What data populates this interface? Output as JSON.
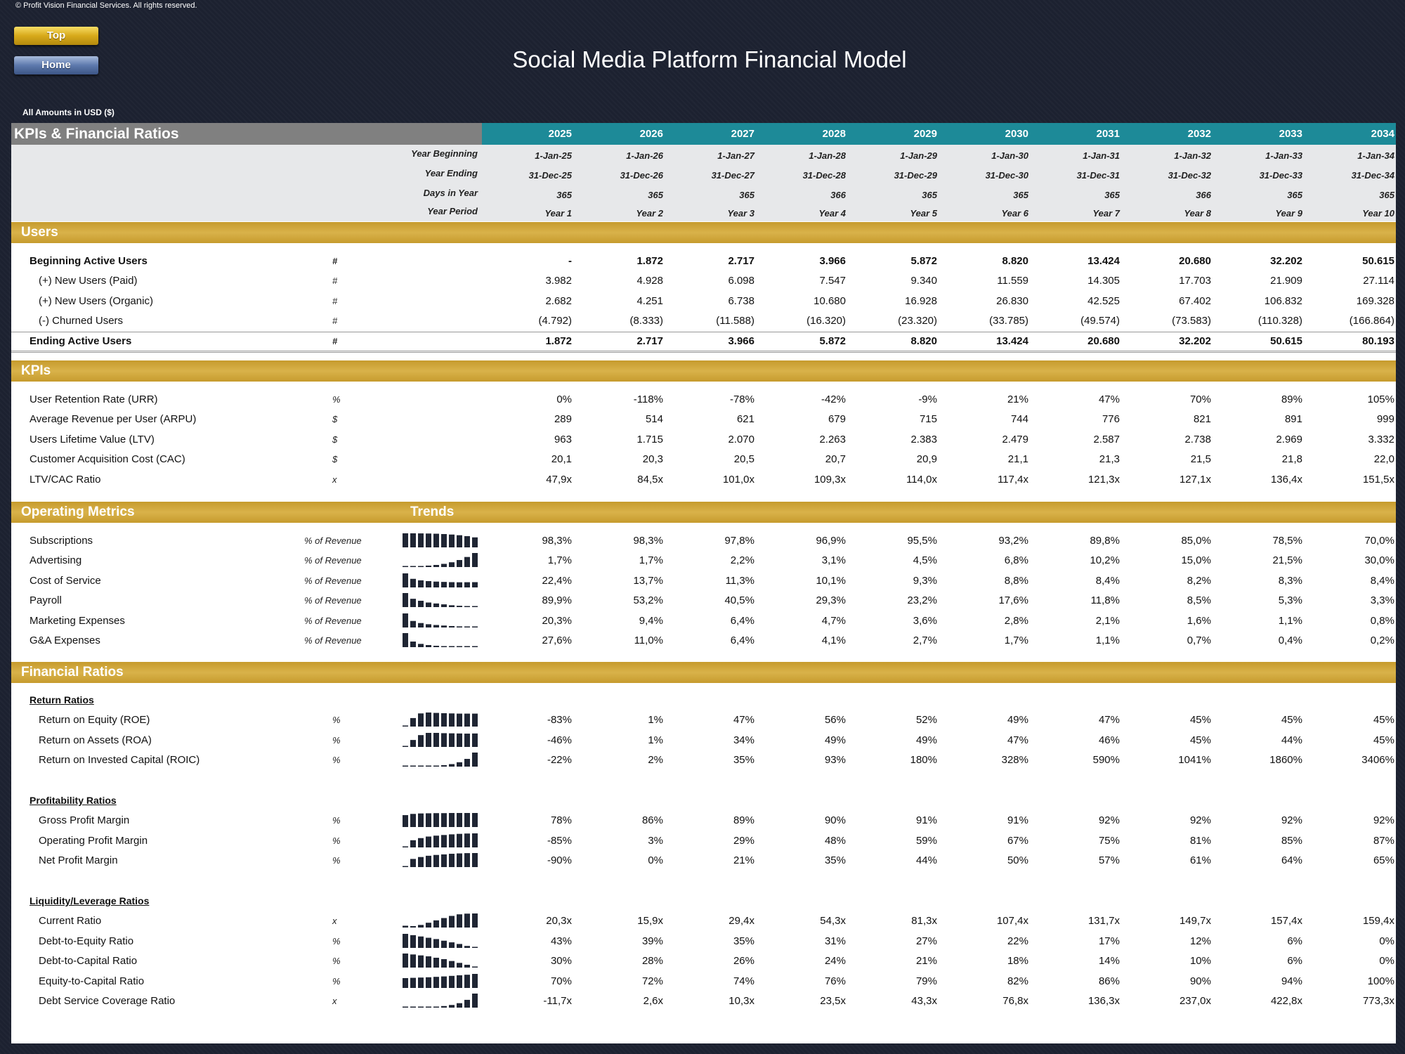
{
  "copyright": "© Profit Vision Financial Services. All rights reserved.",
  "nav": {
    "top_label": "Top",
    "home_label": "Home"
  },
  "title": "Social Media Platform Financial Model",
  "amounts_note": "All Amounts in  USD ($)",
  "header": {
    "label": "KPIs & Financial Ratios",
    "years": [
      "2025",
      "2026",
      "2027",
      "2028",
      "2029",
      "2030",
      "2031",
      "2032",
      "2033",
      "2034"
    ]
  },
  "periods": [
    {
      "label": "Year Beginning",
      "values": [
        "1-Jan-25",
        "1-Jan-26",
        "1-Jan-27",
        "1-Jan-28",
        "1-Jan-29",
        "1-Jan-30",
        "1-Jan-31",
        "1-Jan-32",
        "1-Jan-33",
        "1-Jan-34"
      ]
    },
    {
      "label": "Year Ending",
      "values": [
        "31-Dec-25",
        "31-Dec-26",
        "31-Dec-27",
        "31-Dec-28",
        "31-Dec-29",
        "31-Dec-30",
        "31-Dec-31",
        "31-Dec-32",
        "31-Dec-33",
        "31-Dec-34"
      ]
    },
    {
      "label": "Days in Year",
      "values": [
        "365",
        "365",
        "365",
        "366",
        "365",
        "365",
        "365",
        "366",
        "365",
        "365"
      ]
    },
    {
      "label": "Year Period",
      "values": [
        "Year 1",
        "Year 2",
        "Year 3",
        "Year 4",
        "Year 5",
        "Year 6",
        "Year 7",
        "Year 8",
        "Year 9",
        "Year 10"
      ]
    }
  ],
  "sections": [
    {
      "title": "Users",
      "trends_label": "",
      "subgroups": [
        {
          "title": "",
          "rows": [
            {
              "label": "Beginning Active Users",
              "unit": "#",
              "bold": true,
              "indent": false,
              "values": [
                "-",
                "1.872",
                "2.717",
                "3.966",
                "5.872",
                "8.820",
                "13.424",
                "20.680",
                "32.202",
                "50.615"
              ]
            },
            {
              "label": "(+) New Users (Paid)",
              "unit": "#",
              "indent": true,
              "values": [
                "3.982",
                "4.928",
                "6.098",
                "7.547",
                "9.340",
                "11.559",
                "14.305",
                "17.703",
                "21.909",
                "27.114"
              ]
            },
            {
              "label": "(+) New Users (Organic)",
              "unit": "#",
              "indent": true,
              "values": [
                "2.682",
                "4.251",
                "6.738",
                "10.680",
                "16.928",
                "26.830",
                "42.525",
                "67.402",
                "106.832",
                "169.328"
              ]
            },
            {
              "label": "(-) Churned Users",
              "unit": "#",
              "indent": true,
              "values": [
                "(4.792)",
                "(8.333)",
                "(11.588)",
                "(16.320)",
                "(23.320)",
                "(33.785)",
                "(49.574)",
                "(73.583)",
                "(110.328)",
                "(166.864)"
              ]
            },
            {
              "label": "Ending Active Users",
              "unit": "#",
              "bold": true,
              "indent": false,
              "total": true,
              "values": [
                "1.872",
                "2.717",
                "3.966",
                "5.872",
                "8.820",
                "13.424",
                "20.680",
                "32.202",
                "50.615",
                "80.193"
              ]
            }
          ]
        }
      ]
    },
    {
      "title": "KPIs",
      "trends_label": "",
      "subgroups": [
        {
          "title": "",
          "rows": [
            {
              "label": "User Retention Rate (URR)",
              "unit": "%",
              "values": [
                "0%",
                "-118%",
                "-78%",
                "-42%",
                "-9%",
                "21%",
                "47%",
                "70%",
                "89%",
                "105%"
              ]
            },
            {
              "label": "Average Revenue per User (ARPU)",
              "unit": "$",
              "values": [
                "289",
                "514",
                "621",
                "679",
                "715",
                "744",
                "776",
                "821",
                "891",
                "999"
              ]
            },
            {
              "label": "Users Lifetime Value (LTV)",
              "unit": "$",
              "values": [
                "963",
                "1.715",
                "2.070",
                "2.263",
                "2.383",
                "2.479",
                "2.587",
                "2.738",
                "2.969",
                "3.332"
              ]
            },
            {
              "label": "Customer Acquisition Cost (CAC)",
              "unit": "$",
              "values": [
                "20,1",
                "20,3",
                "20,5",
                "20,7",
                "20,9",
                "21,1",
                "21,3",
                "21,5",
                "21,8",
                "22,0"
              ]
            },
            {
              "label": "LTV/CAC Ratio",
              "unit": "x",
              "values": [
                "47,9x",
                "84,5x",
                "101,0x",
                "109,3x",
                "114,0x",
                "117,4x",
                "121,3x",
                "127,1x",
                "136,4x",
                "151,5x"
              ]
            }
          ]
        }
      ]
    },
    {
      "title": "Operating Metrics",
      "trends_label": "Trends",
      "subgroups": [
        {
          "title": "",
          "rows": [
            {
              "label": "Subscriptions",
              "unit": "% of Revenue",
              "spark": [
                98.3,
                98.3,
                97.8,
                96.9,
                95.5,
                93.2,
                89.8,
                85.0,
                78.5,
                70.0
              ],
              "values": [
                "98,3%",
                "98,3%",
                "97,8%",
                "96,9%",
                "95,5%",
                "93,2%",
                "89,8%",
                "85,0%",
                "78,5%",
                "70,0%"
              ]
            },
            {
              "label": "Advertising",
              "unit": "% of Revenue",
              "spark": [
                1.7,
                1.7,
                2.2,
                3.1,
                4.5,
                6.8,
                10.2,
                15.0,
                21.5,
                30.0
              ],
              "values": [
                "1,7%",
                "1,7%",
                "2,2%",
                "3,1%",
                "4,5%",
                "6,8%",
                "10,2%",
                "15,0%",
                "21,5%",
                "30,0%"
              ]
            },
            {
              "label": "Cost of Service",
              "unit": "% of Revenue",
              "spark": [
                22.4,
                13.7,
                11.3,
                10.1,
                9.3,
                8.8,
                8.4,
                8.2,
                8.3,
                8.4
              ],
              "values": [
                "22,4%",
                "13,7%",
                "11,3%",
                "10,1%",
                "9,3%",
                "8,8%",
                "8,4%",
                "8,2%",
                "8,3%",
                "8,4%"
              ]
            },
            {
              "label": "Payroll",
              "unit": "% of Revenue",
              "spark": [
                89.9,
                53.2,
                40.5,
                29.3,
                23.2,
                17.6,
                11.8,
                8.5,
                5.3,
                3.3
              ],
              "values": [
                "89,9%",
                "53,2%",
                "40,5%",
                "29,3%",
                "23,2%",
                "17,6%",
                "11,8%",
                "8,5%",
                "5,3%",
                "3,3%"
              ]
            },
            {
              "label": "Marketing Expenses",
              "unit": "% of Revenue",
              "spark": [
                20.3,
                9.4,
                6.4,
                4.7,
                3.6,
                2.8,
                2.1,
                1.6,
                1.1,
                0.8
              ],
              "values": [
                "20,3%",
                "9,4%",
                "6,4%",
                "4,7%",
                "3,6%",
                "2,8%",
                "2,1%",
                "1,6%",
                "1,1%",
                "0,8%"
              ]
            },
            {
              "label": "G&A Expenses",
              "unit": "% of Revenue",
              "spark": [
                27.6,
                11.0,
                6.4,
                4.1,
                2.7,
                1.7,
                1.1,
                0.7,
                0.4,
                0.2
              ],
              "values": [
                "27,6%",
                "11,0%",
                "6,4%",
                "4,1%",
                "2,7%",
                "1,7%",
                "1,1%",
                "0,7%",
                "0,4%",
                "0,2%"
              ]
            }
          ]
        }
      ]
    },
    {
      "title": "Financial Ratios",
      "trends_label": "",
      "subgroups": [
        {
          "title": "Return Ratios",
          "rows": [
            {
              "label": "Return on Equity (ROE)",
              "unit": "%",
              "indent": true,
              "spark": [
                -83,
                1,
                47,
                56,
                52,
                49,
                47,
                45,
                45,
                45
              ],
              "values": [
                "-83%",
                "1%",
                "47%",
                "56%",
                "52%",
                "49%",
                "47%",
                "45%",
                "45%",
                "45%"
              ]
            },
            {
              "label": "Return on Assets (ROA)",
              "unit": "%",
              "indent": true,
              "spark": [
                -46,
                1,
                34,
                49,
                49,
                47,
                46,
                45,
                44,
                45
              ],
              "values": [
                "-46%",
                "1%",
                "34%",
                "49%",
                "49%",
                "47%",
                "46%",
                "45%",
                "44%",
                "45%"
              ]
            },
            {
              "label": "Return on Invested Capital (ROIC)",
              "unit": "%",
              "indent": true,
              "spark": [
                -22,
                2,
                35,
                93,
                180,
                328,
                590,
                1041,
                1860,
                3406
              ],
              "values": [
                "-22%",
                "2%",
                "35%",
                "93%",
                "180%",
                "328%",
                "590%",
                "1041%",
                "1860%",
                "3406%"
              ]
            }
          ]
        },
        {
          "title": "Profitability Ratios",
          "rows": [
            {
              "label": "Gross Profit Margin",
              "unit": "%",
              "indent": true,
              "spark": [
                78,
                86,
                89,
                90,
                91,
                91,
                92,
                92,
                92,
                92
              ],
              "values": [
                "78%",
                "86%",
                "89%",
                "90%",
                "91%",
                "91%",
                "92%",
                "92%",
                "92%",
                "92%"
              ]
            },
            {
              "label": "Operating Profit Margin",
              "unit": "%",
              "indent": true,
              "spark": [
                -85,
                3,
                29,
                48,
                59,
                67,
                75,
                81,
                85,
                87
              ],
              "values": [
                "-85%",
                "3%",
                "29%",
                "48%",
                "59%",
                "67%",
                "75%",
                "81%",
                "85%",
                "87%"
              ]
            },
            {
              "label": "Net Profit Margin",
              "unit": "%",
              "indent": true,
              "spark": [
                -90,
                0,
                21,
                35,
                44,
                50,
                57,
                61,
                64,
                65
              ],
              "values": [
                "-90%",
                "0%",
                "21%",
                "35%",
                "44%",
                "50%",
                "57%",
                "61%",
                "64%",
                "65%"
              ]
            }
          ]
        },
        {
          "title": "Liquidity/Leverage Ratios",
          "rows": [
            {
              "label": "Current Ratio",
              "unit": "x",
              "indent": true,
              "spark": [
                20.3,
                15.9,
                29.4,
                54.3,
                81.3,
                107.4,
                131.7,
                149.7,
                157.4,
                159.4
              ],
              "values": [
                "20,3x",
                "15,9x",
                "29,4x",
                "54,3x",
                "81,3x",
                "107,4x",
                "131,7x",
                "149,7x",
                "157,4x",
                "159,4x"
              ]
            },
            {
              "label": "Debt-to-Equity Ratio",
              "unit": "%",
              "indent": true,
              "spark": [
                43,
                39,
                35,
                31,
                27,
                22,
                17,
                12,
                6,
                0
              ],
              "values": [
                "43%",
                "39%",
                "35%",
                "31%",
                "27%",
                "22%",
                "17%",
                "12%",
                "6%",
                "0%"
              ]
            },
            {
              "label": "Debt-to-Capital Ratio",
              "unit": "%",
              "indent": true,
              "spark": [
                30,
                28,
                26,
                24,
                21,
                18,
                14,
                10,
                6,
                0
              ],
              "values": [
                "30%",
                "28%",
                "26%",
                "24%",
                "21%",
                "18%",
                "14%",
                "10%",
                "6%",
                "0%"
              ]
            },
            {
              "label": "Equity-to-Capital Ratio",
              "unit": "%",
              "indent": true,
              "spark": [
                70,
                72,
                74,
                76,
                79,
                82,
                86,
                90,
                94,
                100
              ],
              "values": [
                "70%",
                "72%",
                "74%",
                "76%",
                "79%",
                "82%",
                "86%",
                "90%",
                "94%",
                "100%"
              ]
            },
            {
              "label": "Debt Service Coverage Ratio",
              "unit": "x",
              "indent": true,
              "spark": [
                -11.7,
                2.6,
                10.3,
                23.5,
                43.3,
                76.8,
                136.3,
                237.0,
                422.8,
                773.3
              ],
              "values": [
                "-11,7x",
                "2,6x",
                "10,3x",
                "23,5x",
                "43,3x",
                "76,8x",
                "136,3x",
                "237,0x",
                "422,8x",
                "773,3x"
              ]
            }
          ]
        }
      ]
    }
  ]
}
